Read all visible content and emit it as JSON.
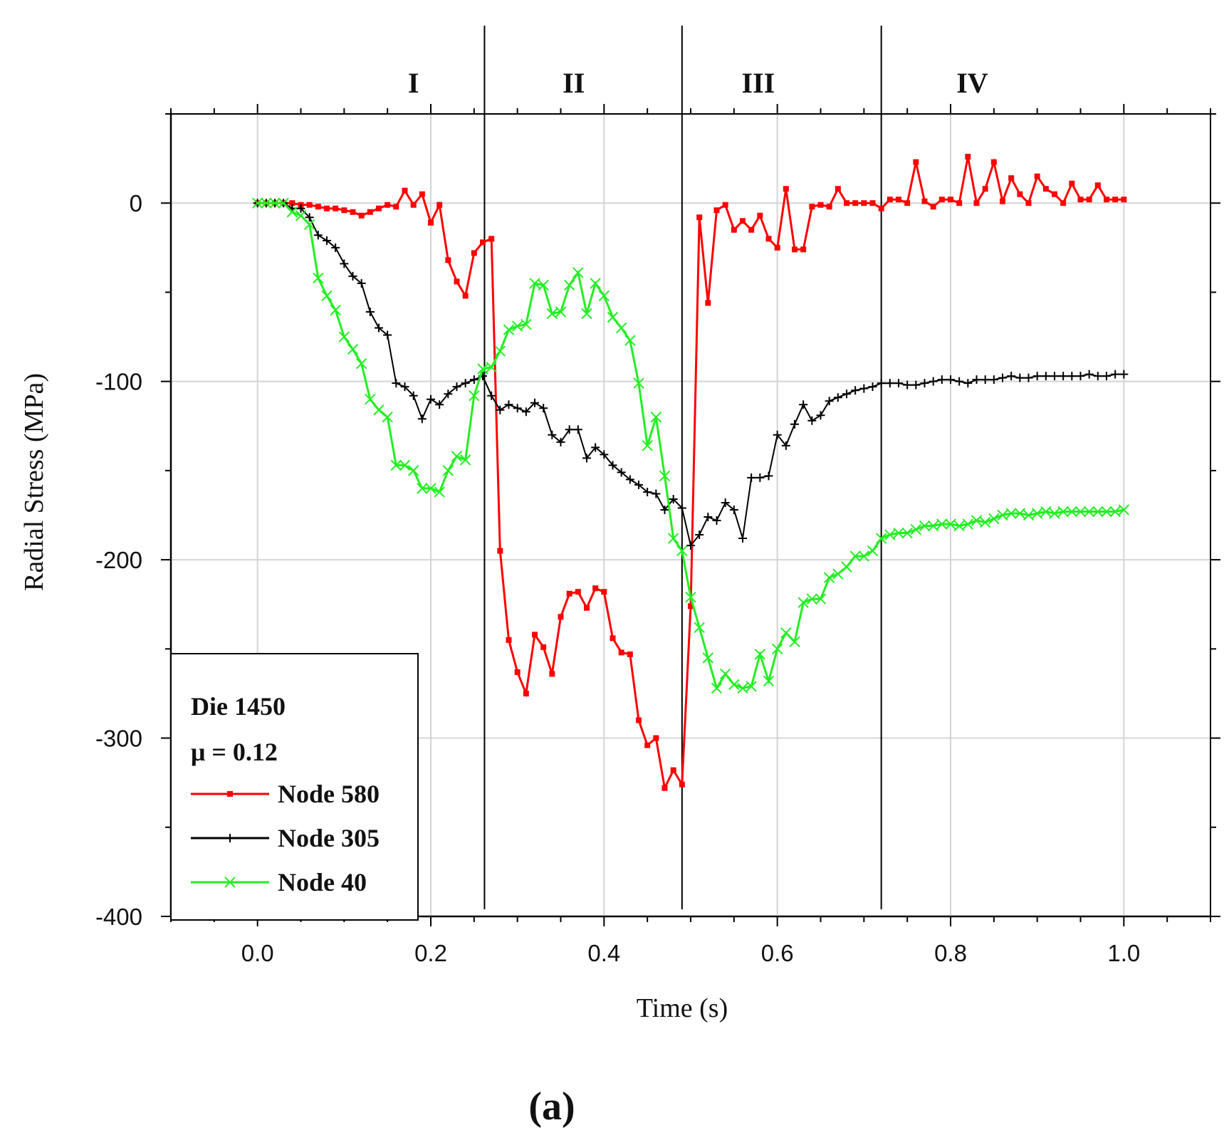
{
  "chart_data": {
    "type": "line",
    "title": "",
    "xlabel": "Time (s)",
    "ylabel": "Radial Stress (MPa)",
    "xlim": [
      -0.1,
      1.1
    ],
    "ylim": [
      -400,
      50
    ],
    "xticks": [
      "0.0",
      "0.2",
      "0.4",
      "0.6",
      "0.8",
      "1.0"
    ],
    "xtick_values": [
      0,
      0.2,
      0.4,
      0.6,
      0.8,
      1.0
    ],
    "yticks": [
      "0",
      "-100",
      "-200",
      "-300",
      "-400"
    ],
    "ytick_values": [
      0,
      -100,
      -200,
      -300,
      -400
    ],
    "grid": true,
    "caption": "(a)",
    "phases": {
      "labels": [
        "I",
        "II",
        "III",
        "IV"
      ],
      "label_x": [
        0.18,
        0.365,
        0.578,
        0.825
      ],
      "boundaries": [
        0.262,
        0.49,
        0.72
      ]
    },
    "legend": {
      "position": "bottom-left",
      "lines": [
        "Die 1450",
        "μ = 0.12"
      ]
    },
    "series": [
      {
        "name": "Node 580",
        "color": "#ff0000",
        "marker": "square",
        "x": [
          0.0,
          0.01,
          0.02,
          0.03,
          0.04,
          0.05,
          0.06,
          0.07,
          0.08,
          0.09,
          0.1,
          0.11,
          0.12,
          0.13,
          0.14,
          0.15,
          0.16,
          0.17,
          0.18,
          0.19,
          0.2,
          0.21,
          0.22,
          0.23,
          0.24,
          0.25,
          0.26,
          0.27,
          0.28,
          0.29,
          0.3,
          0.31,
          0.32,
          0.33,
          0.34,
          0.35,
          0.36,
          0.37,
          0.38,
          0.39,
          0.4,
          0.41,
          0.42,
          0.43,
          0.44,
          0.45,
          0.46,
          0.47,
          0.48,
          0.49,
          0.5,
          0.51,
          0.52,
          0.53,
          0.54,
          0.55,
          0.56,
          0.57,
          0.58,
          0.59,
          0.6,
          0.61,
          0.62,
          0.63,
          0.64,
          0.65,
          0.66,
          0.67,
          0.68,
          0.69,
          0.7,
          0.71,
          0.72,
          0.73,
          0.74,
          0.75,
          0.76,
          0.77,
          0.78,
          0.79,
          0.8,
          0.81,
          0.82,
          0.83,
          0.84,
          0.85,
          0.86,
          0.87,
          0.88,
          0.89,
          0.9,
          0.91,
          0.92,
          0.93,
          0.94,
          0.95,
          0.96,
          0.97,
          0.98,
          0.99,
          1.0
        ],
        "values": [
          0,
          0,
          0,
          0,
          0,
          -1,
          -1,
          -2,
          -3,
          -3,
          -4,
          -5,
          -7,
          -5,
          -3,
          -1,
          -2,
          7,
          -1,
          5,
          -11,
          -1,
          -32,
          -44,
          -52,
          -28,
          -22,
          -20,
          -195,
          -245,
          -263,
          -275,
          -242,
          -249,
          -264,
          -232,
          -219,
          -218,
          -227,
          -216,
          -218,
          -244,
          -252,
          -253,
          -290,
          -304,
          -300,
          -328,
          -318,
          -326,
          -226,
          -8,
          -56,
          -4,
          -1,
          -15,
          -10,
          -15,
          -7,
          -20,
          -25,
          8,
          -26,
          -26,
          -2,
          -1,
          -2,
          8,
          0,
          0,
          0,
          0,
          -3,
          2,
          2,
          0,
          23,
          1,
          -2,
          2,
          2,
          0,
          26,
          0,
          8,
          23,
          1,
          14,
          5,
          0,
          15,
          8,
          5,
          0,
          11,
          2,
          2,
          10,
          2,
          2,
          2
        ]
      },
      {
        "name": "Node 305",
        "color": "#000000",
        "marker": "plus",
        "x": [
          0.0,
          0.01,
          0.02,
          0.03,
          0.04,
          0.05,
          0.06,
          0.07,
          0.08,
          0.09,
          0.1,
          0.11,
          0.12,
          0.13,
          0.14,
          0.15,
          0.16,
          0.17,
          0.18,
          0.19,
          0.2,
          0.21,
          0.22,
          0.23,
          0.24,
          0.25,
          0.26,
          0.27,
          0.28,
          0.29,
          0.3,
          0.31,
          0.32,
          0.33,
          0.34,
          0.35,
          0.36,
          0.37,
          0.38,
          0.39,
          0.4,
          0.41,
          0.42,
          0.43,
          0.44,
          0.45,
          0.46,
          0.47,
          0.48,
          0.49,
          0.5,
          0.51,
          0.52,
          0.53,
          0.54,
          0.55,
          0.56,
          0.57,
          0.58,
          0.59,
          0.6,
          0.61,
          0.62,
          0.63,
          0.64,
          0.65,
          0.66,
          0.67,
          0.68,
          0.69,
          0.7,
          0.71,
          0.72,
          0.73,
          0.74,
          0.75,
          0.76,
          0.77,
          0.78,
          0.79,
          0.8,
          0.81,
          0.82,
          0.83,
          0.84,
          0.85,
          0.86,
          0.87,
          0.88,
          0.89,
          0.9,
          0.91,
          0.92,
          0.93,
          0.94,
          0.95,
          0.96,
          0.97,
          0.98,
          0.99,
          1.0
        ],
        "values": [
          0,
          0,
          0,
          0,
          -3,
          -3,
          -8,
          -18,
          -21,
          -25,
          -34,
          -41,
          -45,
          -61,
          -70,
          -74,
          -101,
          -103,
          -108,
          -121,
          -110,
          -113,
          -107,
          -103,
          -101,
          -99,
          -97,
          -108,
          -116,
          -113,
          -115,
          -117,
          -112,
          -115,
          -130,
          -134,
          -127,
          -127,
          -143,
          -137,
          -141,
          -147,
          -151,
          -155,
          -158,
          -162,
          -163,
          -172,
          -166,
          -171,
          -192,
          -186,
          -176,
          -178,
          -168,
          -172,
          -188,
          -154,
          -154,
          -153,
          -130,
          -136,
          -124,
          -113,
          -122,
          -119,
          -111,
          -109,
          -107,
          -105,
          -104,
          -103,
          -101,
          -101,
          -101,
          -102,
          -102,
          -101,
          -100,
          -99,
          -99,
          -100,
          -101,
          -99,
          -99,
          -99,
          -98,
          -97,
          -98,
          -98,
          -97,
          -97,
          -97,
          -97,
          -97,
          -97,
          -96,
          -97,
          -97,
          -96,
          -96
        ]
      },
      {
        "name": "Node 40",
        "color": "#22ee22",
        "marker": "x",
        "x": [
          0.0,
          0.01,
          0.02,
          0.03,
          0.04,
          0.05,
          0.06,
          0.07,
          0.08,
          0.09,
          0.1,
          0.11,
          0.12,
          0.13,
          0.14,
          0.15,
          0.16,
          0.17,
          0.18,
          0.19,
          0.2,
          0.21,
          0.22,
          0.23,
          0.24,
          0.25,
          0.26,
          0.27,
          0.28,
          0.29,
          0.3,
          0.31,
          0.32,
          0.33,
          0.34,
          0.35,
          0.36,
          0.37,
          0.38,
          0.39,
          0.4,
          0.41,
          0.42,
          0.43,
          0.44,
          0.45,
          0.46,
          0.47,
          0.48,
          0.49,
          0.5,
          0.51,
          0.52,
          0.53,
          0.54,
          0.55,
          0.56,
          0.57,
          0.58,
          0.59,
          0.6,
          0.61,
          0.62,
          0.63,
          0.64,
          0.65,
          0.66,
          0.67,
          0.68,
          0.69,
          0.7,
          0.71,
          0.72,
          0.73,
          0.74,
          0.75,
          0.76,
          0.77,
          0.78,
          0.79,
          0.8,
          0.81,
          0.82,
          0.83,
          0.84,
          0.85,
          0.86,
          0.87,
          0.88,
          0.89,
          0.9,
          0.91,
          0.92,
          0.93,
          0.94,
          0.95,
          0.96,
          0.97,
          0.98,
          0.99,
          1.0
        ],
        "values": [
          0,
          0,
          0,
          0,
          -5,
          -7,
          -12,
          -42,
          -52,
          -60,
          -75,
          -82,
          -90,
          -110,
          -116,
          -120,
          -147,
          -147,
          -150,
          -160,
          -160,
          -162,
          -150,
          -142,
          -144,
          -108,
          -93,
          -92,
          -83,
          -71,
          -69,
          -68,
          -45,
          -46,
          -62,
          -61,
          -46,
          -39,
          -62,
          -45,
          -52,
          -64,
          -70,
          -77,
          -101,
          -136,
          -120,
          -153,
          -188,
          -195,
          -221,
          -238,
          -255,
          -272,
          -264,
          -270,
          -272,
          -271,
          -253,
          -268,
          -250,
          -241,
          -246,
          -224,
          -222,
          -222,
          -210,
          -208,
          -204,
          -198,
          -198,
          -195,
          -188,
          -186,
          -185,
          -185,
          -183,
          -181,
          -181,
          -180,
          -180,
          -181,
          -180,
          -178,
          -179,
          -177,
          -175,
          -174,
          -174,
          -175,
          -174,
          -173,
          -174,
          -173,
          -173,
          -173,
          -173,
          -173,
          -173,
          -173,
          -172
        ]
      }
    ]
  }
}
